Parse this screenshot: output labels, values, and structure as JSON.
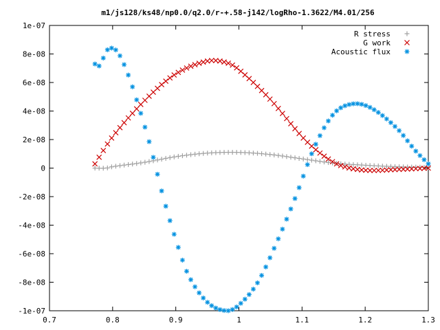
{
  "chart_data": {
    "type": "scatter",
    "title": "m1/js128/ks48/np0.0/q2.0/r-+.58-j142/logRho-1.3622/M4.01/256",
    "xlabel": "",
    "ylabel": "",
    "xlim": [
      0.7,
      1.3
    ],
    "ylim": [
      -1e-07,
      1e-07
    ],
    "x_ticks": [
      "0.7",
      "0.8",
      "0.9",
      "1",
      "1.1",
      "1.2",
      "1.3"
    ],
    "x_tick_values": [
      0.7,
      0.8,
      0.9,
      1.0,
      1.1,
      1.2,
      1.3
    ],
    "y_ticks": [
      "-1e-07",
      "-8e-08",
      "-6e-08",
      "-4e-08",
      "-2e-08",
      "0",
      "2e-08",
      "4e-08",
      "6e-08",
      "8e-08",
      "1e-07"
    ],
    "y_tick_values": [
      -1e-07,
      -8e-08,
      -6e-08,
      -4e-08,
      -2e-08,
      0,
      2e-08,
      4e-08,
      6e-08,
      8e-08,
      1e-07
    ],
    "grid": false,
    "legend_position": "top-right",
    "x_start": 0.772,
    "x_end": 1.3,
    "x_step": 0.0066,
    "series": [
      {
        "name": "R stress",
        "marker": "+",
        "color": "#a0a0a0",
        "control_points": [
          [
            0.772,
            0
          ],
          [
            0.79,
            0
          ],
          [
            0.8,
            1e-09
          ],
          [
            0.85,
            4e-09
          ],
          [
            0.9,
            8e-09
          ],
          [
            0.95,
            1.05e-08
          ],
          [
            1.0,
            1.1e-08
          ],
          [
            1.05,
            9.5e-09
          ],
          [
            1.1,
            6.5e-09
          ],
          [
            1.15,
            3.5e-09
          ],
          [
            1.2,
            2e-09
          ],
          [
            1.25,
            1e-09
          ],
          [
            1.3,
            5e-10
          ]
        ]
      },
      {
        "name": "G work",
        "marker": "x",
        "color": "#cc0000",
        "control_points": [
          [
            0.772,
            3e-09
          ],
          [
            0.8,
            2.2e-08
          ],
          [
            0.85,
            4.7e-08
          ],
          [
            0.9,
            6.6e-08
          ],
          [
            0.95,
            7.5e-08
          ],
          [
            0.98,
            7.4e-08
          ],
          [
            1.0,
            6.9e-08
          ],
          [
            1.05,
            4.8e-08
          ],
          [
            1.1,
            2.2e-08
          ],
          [
            1.13,
            1e-08
          ],
          [
            1.16,
            2e-09
          ],
          [
            1.2,
            -1.5e-09
          ],
          [
            1.25,
            -1e-09
          ],
          [
            1.3,
            0
          ]
        ]
      },
      {
        "name": "Acoustic flux",
        "marker": "*",
        "color": "#0090e0",
        "control_points": [
          [
            0.772,
            7.3e-08
          ],
          [
            0.78,
            7.2e-08
          ],
          [
            0.79,
            8.2e-08
          ],
          [
            0.8,
            8.4e-08
          ],
          [
            0.81,
            8e-08
          ],
          [
            0.825,
            6.5e-08
          ],
          [
            0.84,
            4.5e-08
          ],
          [
            0.86,
            1.5e-08
          ],
          [
            0.88,
            -2e-08
          ],
          [
            0.9,
            -5e-08
          ],
          [
            0.92,
            -7.5e-08
          ],
          [
            0.95,
            -9.4e-08
          ],
          [
            0.98,
            -1e-07
          ],
          [
            1.0,
            -9.6e-08
          ],
          [
            1.03,
            -8e-08
          ],
          [
            1.06,
            -5.2e-08
          ],
          [
            1.09,
            -2e-08
          ],
          [
            1.12,
            1.5e-08
          ],
          [
            1.15,
            3.8e-08
          ],
          [
            1.18,
            4.5e-08
          ],
          [
            1.21,
            4.2e-08
          ],
          [
            1.25,
            2.8e-08
          ],
          [
            1.28,
            1.2e-08
          ],
          [
            1.3,
            3e-09
          ]
        ]
      }
    ]
  }
}
